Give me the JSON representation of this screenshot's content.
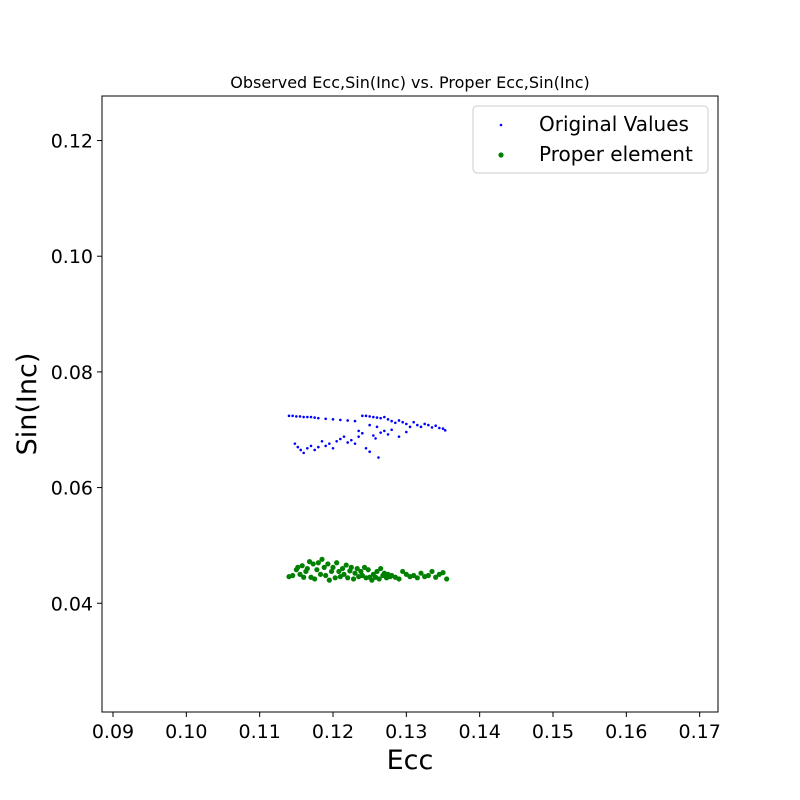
{
  "chart_data": {
    "type": "scatter",
    "title": "Observed Ecc,Sin(Inc) vs. Proper Ecc,Sin(Inc)",
    "xlabel": "Ecc",
    "ylabel": "Sin(Inc)",
    "xlim": [
      0.0885,
      0.1725
    ],
    "ylim": [
      0.0212,
      0.1277
    ],
    "xticks": [
      "0.09",
      "0.10",
      "0.11",
      "0.12",
      "0.13",
      "0.14",
      "0.15",
      "0.16",
      "0.17"
    ],
    "yticks": [
      "0.04",
      "0.06",
      "0.08",
      "0.10",
      "0.12"
    ],
    "grid": false,
    "legend_position": "upper-right",
    "series": [
      {
        "name": "Original Values",
        "color": "#0000ff",
        "marker_size": "small",
        "points": [
          [
            0.114,
            0.0724
          ],
          [
            0.1145,
            0.0724
          ],
          [
            0.115,
            0.0723
          ],
          [
            0.1155,
            0.0723
          ],
          [
            0.116,
            0.0722
          ],
          [
            0.1165,
            0.0722
          ],
          [
            0.117,
            0.0722
          ],
          [
            0.1175,
            0.0721
          ],
          [
            0.118,
            0.072
          ],
          [
            0.119,
            0.0719
          ],
          [
            0.12,
            0.0718
          ],
          [
            0.121,
            0.0717
          ],
          [
            0.122,
            0.0716
          ],
          [
            0.123,
            0.0715
          ],
          [
            0.124,
            0.0724
          ],
          [
            0.1245,
            0.0724
          ],
          [
            0.125,
            0.0723
          ],
          [
            0.1255,
            0.0722
          ],
          [
            0.126,
            0.0721
          ],
          [
            0.1265,
            0.072
          ],
          [
            0.127,
            0.0722
          ],
          [
            0.1275,
            0.0718
          ],
          [
            0.128,
            0.0715
          ],
          [
            0.1285,
            0.0712
          ],
          [
            0.129,
            0.0716
          ],
          [
            0.1295,
            0.0713
          ],
          [
            0.13,
            0.071
          ],
          [
            0.1305,
            0.0705
          ],
          [
            0.131,
            0.0713
          ],
          [
            0.1315,
            0.0708
          ],
          [
            0.132,
            0.0705
          ],
          [
            0.1325,
            0.071
          ],
          [
            0.133,
            0.0708
          ],
          [
            0.1335,
            0.0704
          ],
          [
            0.134,
            0.0707
          ],
          [
            0.1345,
            0.0703
          ],
          [
            0.135,
            0.0702
          ],
          [
            0.1353,
            0.0699
          ],
          [
            0.1148,
            0.0676
          ],
          [
            0.1152,
            0.067
          ],
          [
            0.1156,
            0.0665
          ],
          [
            0.116,
            0.066
          ],
          [
            0.1165,
            0.0668
          ],
          [
            0.117,
            0.0672
          ],
          [
            0.1175,
            0.0665
          ],
          [
            0.118,
            0.067
          ],
          [
            0.1185,
            0.068
          ],
          [
            0.119,
            0.0672
          ],
          [
            0.1195,
            0.0676
          ],
          [
            0.12,
            0.0668
          ],
          [
            0.1205,
            0.068
          ],
          [
            0.121,
            0.0684
          ],
          [
            0.1215,
            0.0688
          ],
          [
            0.122,
            0.0678
          ],
          [
            0.1225,
            0.0682
          ],
          [
            0.123,
            0.0676
          ],
          [
            0.1235,
            0.0688
          ],
          [
            0.124,
            0.0694
          ],
          [
            0.1245,
            0.0668
          ],
          [
            0.125,
            0.0662
          ],
          [
            0.1255,
            0.069
          ],
          [
            0.1258,
            0.0685
          ],
          [
            0.1262,
            0.0652
          ],
          [
            0.1265,
            0.0695
          ],
          [
            0.127,
            0.0698
          ],
          [
            0.1275,
            0.0692
          ],
          [
            0.128,
            0.07
          ],
          [
            0.129,
            0.0688
          ],
          [
            0.13,
            0.0696
          ],
          [
            0.1235,
            0.0698
          ],
          [
            0.125,
            0.0708
          ],
          [
            0.126,
            0.0705
          ]
        ]
      },
      {
        "name": "Proper element",
        "color": "#008000",
        "marker_size": "large",
        "points": [
          [
            0.114,
            0.0446
          ],
          [
            0.1145,
            0.0448
          ],
          [
            0.115,
            0.0458
          ],
          [
            0.1152,
            0.0462
          ],
          [
            0.1155,
            0.045
          ],
          [
            0.1158,
            0.0465
          ],
          [
            0.116,
            0.0445
          ],
          [
            0.1163,
            0.0455
          ],
          [
            0.1165,
            0.046
          ],
          [
            0.1168,
            0.0472
          ],
          [
            0.117,
            0.0445
          ],
          [
            0.1173,
            0.0468
          ],
          [
            0.1175,
            0.0442
          ],
          [
            0.1178,
            0.0458
          ],
          [
            0.118,
            0.047
          ],
          [
            0.1183,
            0.045
          ],
          [
            0.1185,
            0.0476
          ],
          [
            0.1188,
            0.0462
          ],
          [
            0.119,
            0.0448
          ],
          [
            0.1193,
            0.0468
          ],
          [
            0.1195,
            0.044
          ],
          [
            0.1198,
            0.0455
          ],
          [
            0.12,
            0.0462
          ],
          [
            0.1203,
            0.0444
          ],
          [
            0.1205,
            0.047
          ],
          [
            0.1208,
            0.0455
          ],
          [
            0.121,
            0.0446
          ],
          [
            0.1213,
            0.046
          ],
          [
            0.1215,
            0.045
          ],
          [
            0.1218,
            0.0466
          ],
          [
            0.122,
            0.0444
          ],
          [
            0.1223,
            0.0456
          ],
          [
            0.1225,
            0.0462
          ],
          [
            0.1228,
            0.0442
          ],
          [
            0.123,
            0.0452
          ],
          [
            0.1233,
            0.046
          ],
          [
            0.1235,
            0.0446
          ],
          [
            0.1238,
            0.0455
          ],
          [
            0.124,
            0.0448
          ],
          [
            0.1243,
            0.0462
          ],
          [
            0.1245,
            0.0444
          ],
          [
            0.1248,
            0.0458
          ],
          [
            0.125,
            0.0445
          ],
          [
            0.1253,
            0.044
          ],
          [
            0.1255,
            0.045
          ],
          [
            0.1258,
            0.0445
          ],
          [
            0.126,
            0.0455
          ],
          [
            0.1263,
            0.0442
          ],
          [
            0.1265,
            0.046
          ],
          [
            0.1268,
            0.0448
          ],
          [
            0.127,
            0.0452
          ],
          [
            0.1273,
            0.0444
          ],
          [
            0.1275,
            0.045
          ],
          [
            0.1278,
            0.0446
          ],
          [
            0.128,
            0.0448
          ],
          [
            0.1285,
            0.0445
          ],
          [
            0.129,
            0.0442
          ],
          [
            0.1295,
            0.0455
          ],
          [
            0.13,
            0.045
          ],
          [
            0.1305,
            0.0446
          ],
          [
            0.131,
            0.0448
          ],
          [
            0.1315,
            0.0444
          ],
          [
            0.132,
            0.0452
          ],
          [
            0.1325,
            0.0446
          ],
          [
            0.133,
            0.0448
          ],
          [
            0.1335,
            0.0455
          ],
          [
            0.134,
            0.0445
          ],
          [
            0.1345,
            0.045
          ],
          [
            0.135,
            0.0453
          ],
          [
            0.1355,
            0.0442
          ]
        ]
      }
    ]
  }
}
